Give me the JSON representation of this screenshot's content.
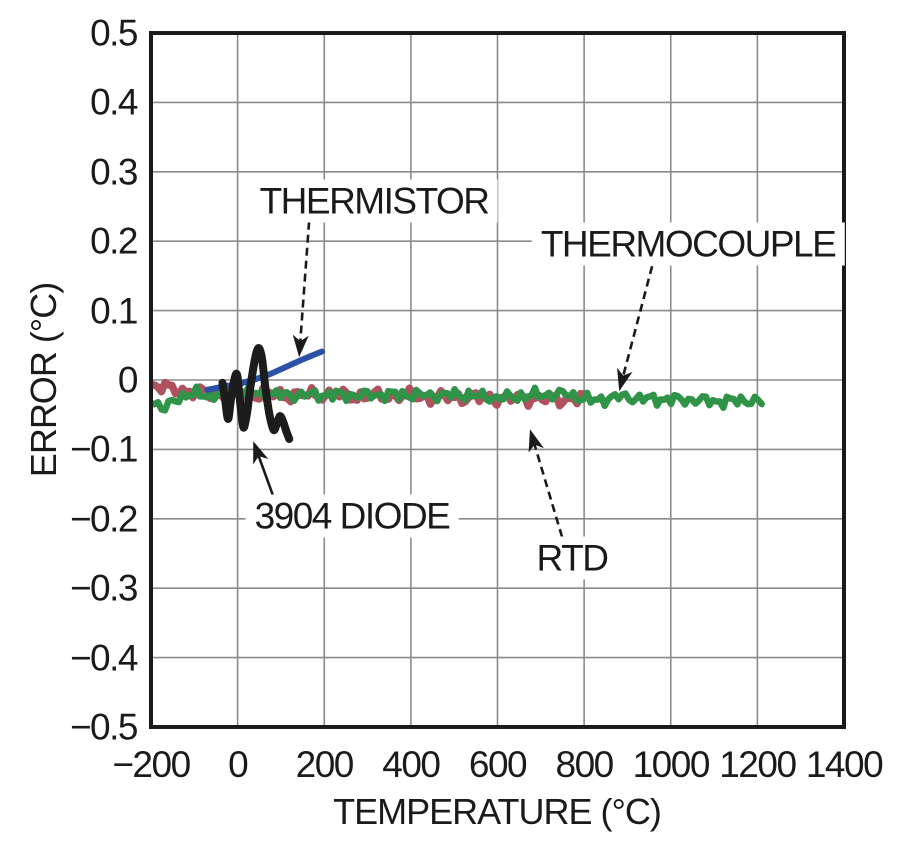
{
  "figure": {
    "background": "#ffffff"
  },
  "chart_data": {
    "type": "line",
    "title": "",
    "xlabel": "TEMPERATURE (°C)",
    "ylabel": "ERROR (°C)",
    "xlim": [
      -200,
      1400
    ],
    "ylim": [
      -0.5,
      0.5
    ],
    "grid": true,
    "x_ticks": [
      -200,
      0,
      200,
      400,
      600,
      800,
      1000,
      1200,
      1400
    ],
    "x_tick_labels": [
      "−200",
      "0",
      "200",
      "400",
      "600",
      "800",
      "1000",
      "1200",
      "1400"
    ],
    "y_ticks": [
      0.5,
      0.4,
      0.3,
      0.2,
      0.1,
      0,
      -0.1,
      -0.2,
      -0.3,
      -0.4,
      -0.5
    ],
    "y_tick_labels": [
      "0.5",
      "0.4",
      "0.3",
      "0.2",
      "0.1",
      "0",
      "−0.1",
      "−0.2",
      "−0.3",
      "−0.4",
      "−0.5"
    ],
    "colors": {
      "grid": "#8b8b8b",
      "frame": "#1a1a1a",
      "text": "#1a1a1a",
      "thermistor": "#2b52a7",
      "thermocouple": "#2f9348",
      "rtd": "#b0515f",
      "diode": "#1c1c1c"
    },
    "series": [
      {
        "name": "RTD",
        "color": "#b0515f",
        "width": 7.5,
        "points": [
          [
            -200,
            -0.008
          ],
          [
            -160,
            -0.012
          ],
          [
            -120,
            -0.016
          ],
          [
            -80,
            -0.018
          ],
          [
            -40,
            -0.02
          ],
          [
            0,
            -0.021
          ],
          [
            60,
            -0.02
          ],
          [
            120,
            -0.022
          ],
          [
            200,
            -0.021
          ],
          [
            280,
            -0.024
          ],
          [
            360,
            -0.022
          ],
          [
            440,
            -0.025
          ],
          [
            520,
            -0.025
          ],
          [
            600,
            -0.026
          ],
          [
            680,
            -0.026
          ],
          [
            740,
            -0.028
          ],
          [
            800,
            -0.026
          ]
        ],
        "noise": {
          "amplitude": 0.011,
          "wavelength": 16,
          "seed": 3
        }
      },
      {
        "name": "THERMOCOUPLE",
        "color": "#2f9348",
        "width": 6.5,
        "points": [
          [
            -200,
            -0.028
          ],
          [
            -170,
            -0.043
          ],
          [
            -140,
            -0.026
          ],
          [
            -110,
            -0.02
          ],
          [
            -70,
            -0.022
          ],
          [
            -30,
            -0.02
          ],
          [
            10,
            -0.018
          ],
          [
            60,
            -0.02
          ],
          [
            120,
            -0.022
          ],
          [
            200,
            -0.021
          ],
          [
            280,
            -0.022
          ],
          [
            360,
            -0.021
          ],
          [
            440,
            -0.022
          ],
          [
            520,
            -0.021
          ],
          [
            600,
            -0.026
          ],
          [
            680,
            -0.022
          ],
          [
            760,
            -0.02
          ],
          [
            820,
            -0.03
          ],
          [
            880,
            -0.024
          ],
          [
            940,
            -0.027
          ],
          [
            1000,
            -0.028
          ],
          [
            1060,
            -0.029
          ],
          [
            1120,
            -0.031
          ],
          [
            1170,
            -0.029
          ],
          [
            1210,
            -0.032
          ]
        ],
        "noise": {
          "amplitude": 0.01,
          "wavelength": 13,
          "seed": 8
        }
      },
      {
        "name": "THERMISTOR",
        "color": "#2b52a7",
        "width": 6,
        "points": [
          [
            -70,
            -0.014
          ],
          [
            -45,
            -0.011
          ],
          [
            -20,
            -0.008
          ],
          [
            5,
            -0.005
          ],
          [
            30,
            -0.001
          ],
          [
            55,
            0.004
          ],
          [
            80,
            0.01
          ],
          [
            105,
            0.017
          ],
          [
            130,
            0.024
          ],
          [
            155,
            0.031
          ],
          [
            175,
            0.036
          ],
          [
            195,
            0.041
          ]
        ]
      },
      {
        "name": "3904 DIODE",
        "color": "#1c1c1c",
        "width": 8,
        "points": [
          [
            -35,
            -0.004
          ],
          [
            -29,
            -0.028
          ],
          [
            -22,
            -0.056
          ],
          [
            -15,
            -0.026
          ],
          [
            -7,
            0.002
          ],
          [
            -1,
            0.007
          ],
          [
            5,
            -0.028
          ],
          [
            11,
            -0.06
          ],
          [
            15,
            -0.068
          ],
          [
            22,
            -0.046
          ],
          [
            30,
            -0.008
          ],
          [
            40,
            0.03
          ],
          [
            48,
            0.046
          ],
          [
            56,
            0.032
          ],
          [
            64,
            -0.01
          ],
          [
            73,
            -0.048
          ],
          [
            83,
            -0.072
          ],
          [
            91,
            -0.062
          ],
          [
            98,
            -0.052
          ],
          [
            105,
            -0.06
          ],
          [
            112,
            -0.073
          ],
          [
            119,
            -0.085
          ]
        ]
      }
    ],
    "annotations": [
      {
        "text": "THERMISTOR",
        "label_at": [
          315,
          0.258
        ],
        "arrow_from": [
          165,
          0.228
        ],
        "arrow_to": [
          142,
          0.033
        ],
        "dashed": true
      },
      {
        "text": "THERMOCOUPLE",
        "label_at": [
          1040,
          0.196
        ],
        "arrow_from": [
          957,
          0.164
        ],
        "arrow_to": [
          881,
          -0.016
        ],
        "dashed": true
      },
      {
        "text": "3904 DIODE",
        "label_at": [
          264,
          -0.196
        ],
        "arrow_from": [
          82,
          -0.167
        ],
        "arrow_to": [
          36,
          -0.088
        ],
        "dashed": false
      },
      {
        "text": "RTD",
        "label_at": [
          772,
          -0.256
        ],
        "arrow_from": [
          749,
          -0.226
        ],
        "arrow_to": [
          675,
          -0.071
        ],
        "dashed": true
      }
    ]
  }
}
